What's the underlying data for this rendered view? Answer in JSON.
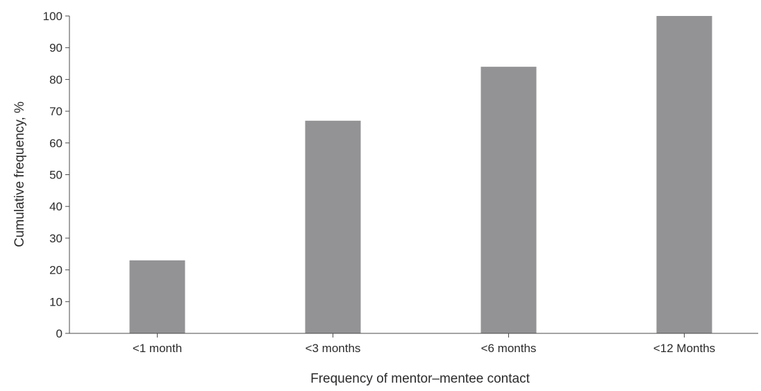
{
  "chart_data": {
    "type": "bar",
    "title": "",
    "xlabel": "Frequency of mentor–mentee contact",
    "ylabel": "Cumulative frequency, %",
    "categories": [
      "<1 month",
      "<3 months",
      "<6 months",
      "<12 Months"
    ],
    "values": [
      23,
      67,
      84,
      100
    ],
    "ylim": [
      0,
      100
    ],
    "yticks": [
      "0",
      "10",
      "20",
      "30",
      "40",
      "50",
      "60",
      "70",
      "80",
      "90",
      "100"
    ],
    "grid": false,
    "legend": "none",
    "bar_color": "#939396",
    "axis_color": "#4a4a4a"
  }
}
